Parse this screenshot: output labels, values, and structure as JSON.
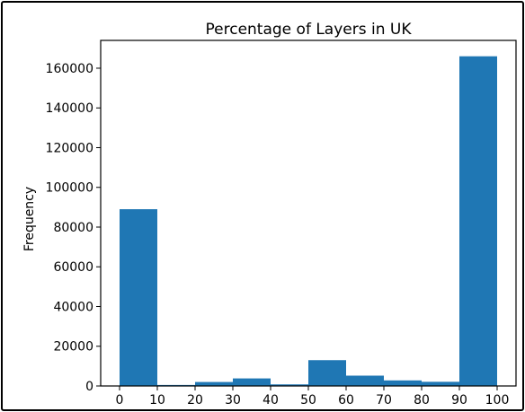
{
  "chart_data": {
    "type": "bar",
    "title": "Percentage of Layers in UK",
    "xlabel": "",
    "ylabel": "Frequency",
    "bins": [
      {
        "start": 0,
        "end": 10,
        "value": 89000
      },
      {
        "start": 10,
        "end": 20,
        "value": 500
      },
      {
        "start": 20,
        "end": 30,
        "value": 2000
      },
      {
        "start": 30,
        "end": 40,
        "value": 3800
      },
      {
        "start": 40,
        "end": 50,
        "value": 800
      },
      {
        "start": 50,
        "end": 60,
        "value": 13000
      },
      {
        "start": 60,
        "end": 70,
        "value": 5200
      },
      {
        "start": 70,
        "end": 80,
        "value": 2800
      },
      {
        "start": 80,
        "end": 90,
        "value": 2100
      },
      {
        "start": 90,
        "end": 100,
        "value": 166000
      }
    ],
    "xticks": [
      0,
      10,
      20,
      30,
      40,
      50,
      60,
      70,
      80,
      90,
      100
    ],
    "yticks": [
      0,
      20000,
      40000,
      60000,
      80000,
      100000,
      120000,
      140000,
      160000
    ],
    "xlim": [
      -5,
      105
    ],
    "ylim": [
      0,
      174000
    ],
    "bar_color": "#1f77b4",
    "grid": false,
    "legend": "none"
  }
}
